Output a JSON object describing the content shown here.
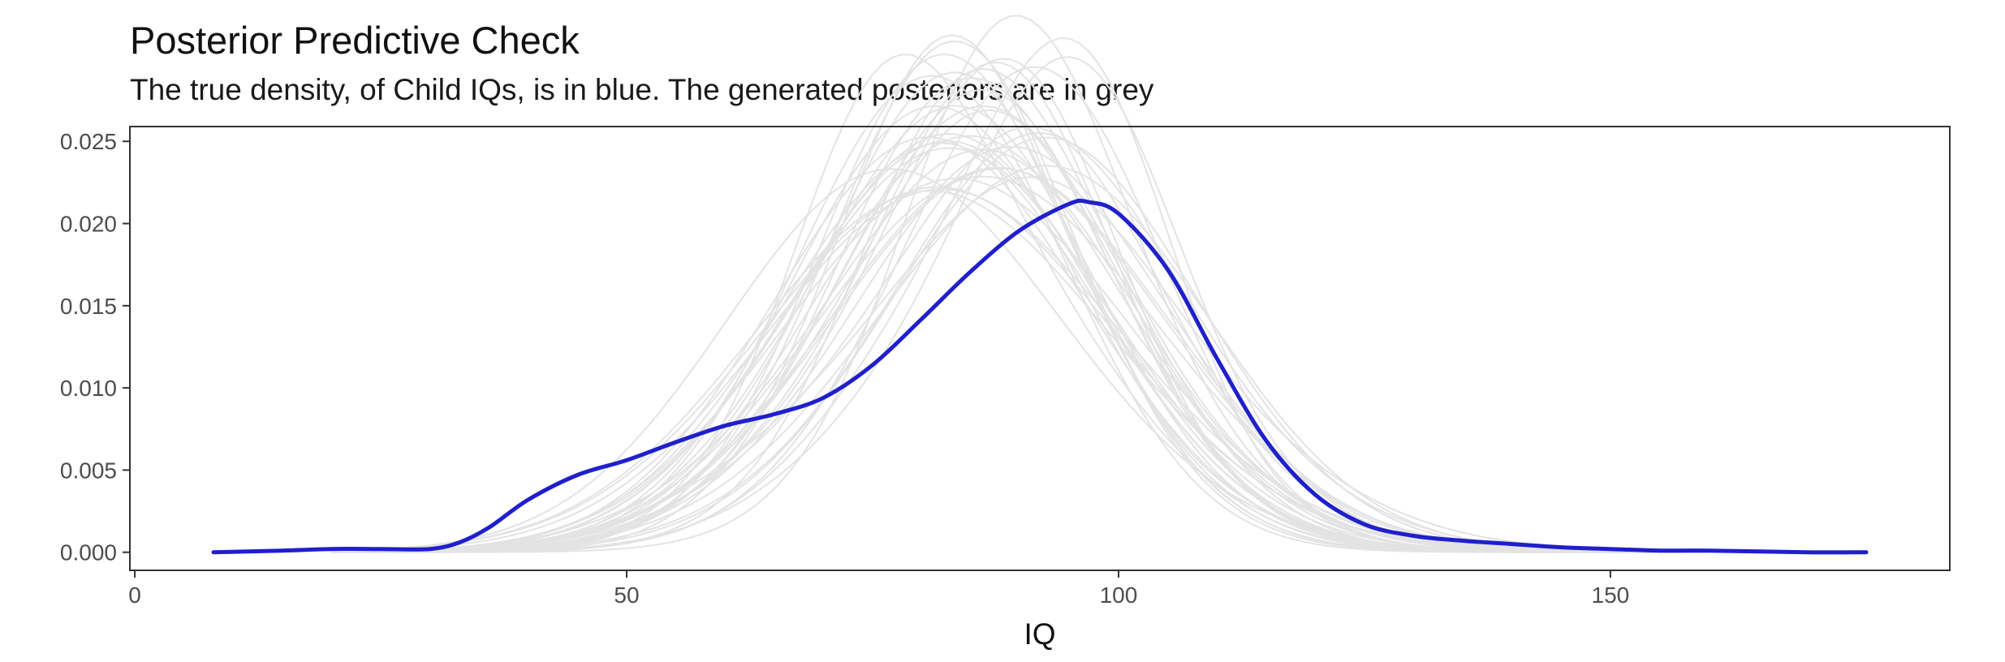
{
  "chart_data": {
    "type": "line",
    "title": "Posterior Predictive Check",
    "subtitle": "The true density, of Child IQs, is in blue. The generated posteriors are in grey",
    "xlabel": "IQ",
    "ylabel": "",
    "xlim": [
      -0.5,
      184.5
    ],
    "ylim": [
      -0.0011,
      0.0259
    ],
    "x_ticks": [
      0,
      50,
      100,
      150
    ],
    "x_tick_labels": [
      "0",
      "50",
      "100",
      "150"
    ],
    "y_ticks": [
      0.0,
      0.005,
      0.01,
      0.015,
      0.02,
      0.025
    ],
    "y_tick_labels": [
      "0.000",
      "0.005",
      "0.010",
      "0.015",
      "0.020",
      "0.025"
    ],
    "grid": false,
    "colors": {
      "observed": "#1f1fcc",
      "replicated": "#e3e3e3",
      "frame": "#333333"
    },
    "observed": {
      "x": [
        8,
        15,
        20,
        25,
        30,
        33,
        36,
        40,
        45,
        50,
        55,
        60,
        65,
        70,
        75,
        80,
        85,
        90,
        95,
        97,
        100,
        105,
        110,
        115,
        120,
        125,
        130,
        135,
        140,
        145,
        150,
        155,
        160,
        170,
        176
      ],
      "y": [
        0.0,
        0.0001,
        0.0002,
        0.0002,
        0.0002,
        0.0006,
        0.0015,
        0.0032,
        0.0047,
        0.0056,
        0.0067,
        0.0077,
        0.0084,
        0.0094,
        0.0114,
        0.0142,
        0.0171,
        0.0196,
        0.0212,
        0.0213,
        0.0206,
        0.0172,
        0.0118,
        0.0068,
        0.0035,
        0.0017,
        0.001,
        0.0007,
        0.0005,
        0.0003,
        0.0002,
        0.0001,
        0.0001,
        0.0,
        0.0
      ]
    },
    "replicated": {
      "count": 40,
      "x_range": [
        20,
        160
      ],
      "mean_range": [
        80,
        92
      ],
      "sd_range": [
        14,
        19.5
      ],
      "approx_peak_range": [
        0.0165,
        0.0248
      ]
    }
  }
}
